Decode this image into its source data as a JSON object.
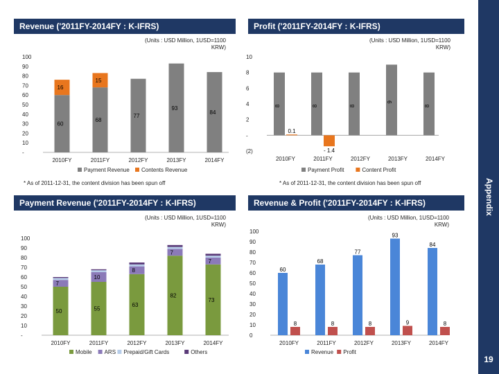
{
  "colors": {
    "navy": "#1f3864",
    "gray": "#808080",
    "orange": "#e8761e",
    "green": "#7a9a3e",
    "lavender": "#8b7ab8",
    "lightblue": "#b7cde9",
    "purple": "#5a3a78",
    "blue": "#4a86d8",
    "red": "#c0504d"
  },
  "sidebar": {
    "label": "Appendix",
    "page_number": "19"
  },
  "panels": {
    "rev": {
      "title": "Revenue ('2011FY-2014FY : K-IFRS)",
      "units": "(Units : USD Million, 1USD=1100 KRW)",
      "note": "* As of 2011-12-31, the content division has been spun off"
    },
    "profit": {
      "title": "Profit ('2011FY-2014FY : K-IFRS)",
      "units": "(Units : USD Million, 1USD=1100 KRW)",
      "note": "* As of 2011-12-31, the content division has been spun off"
    },
    "payrev": {
      "title": "Payment Revenue ('2011FY-2014FY : K-IFRS)",
      "units": "(Units : USD Million, 1USD=1100 KRW)"
    },
    "revprofit": {
      "title": "Revenue & Profit ('2011FY-2014FY : K-IFRS)",
      "units": "(Units : USD Million, 1USD=1100 KRW)"
    }
  },
  "chart_data": [
    {
      "id": "rev",
      "type": "bar",
      "stacked": true,
      "title": "Revenue ('2011FY-2014FY : K-IFRS)",
      "categories": [
        "2010FY",
        "2011FY",
        "2012FY",
        "2013FY",
        "2014FY"
      ],
      "y_tick_labels": [
        "-",
        "10",
        "20",
        "30",
        "40",
        "50",
        "60",
        "70",
        "80",
        "90",
        "100"
      ],
      "ylim": [
        0,
        100
      ],
      "series": [
        {
          "name": "Payment Revenue",
          "color": "#808080",
          "values": [
            60,
            68,
            77,
            93,
            84
          ],
          "labels": [
            "60",
            "68",
            "77",
            "93",
            "84"
          ]
        },
        {
          "name": "Contents Revenue",
          "color": "#e8761e",
          "values": [
            16,
            15,
            0,
            0,
            0
          ],
          "labels": [
            "16",
            "15",
            "",
            "",
            ""
          ]
        }
      ]
    },
    {
      "id": "profit",
      "type": "bar",
      "stacked": false,
      "title": "Profit ('2011FY-2014FY : K-IFRS)",
      "categories": [
        "2010FY",
        "2011FY",
        "2012FY",
        "2013FY",
        "2014FY"
      ],
      "y_tick_labels": [
        "(2)",
        "-",
        "2",
        "4",
        "6",
        "8",
        "10"
      ],
      "ylim": [
        -2,
        10
      ],
      "series": [
        {
          "name": "Payment Profit",
          "color": "#808080",
          "values": [
            8,
            8,
            8,
            9,
            8
          ],
          "labels": [
            "8",
            "8",
            "8",
            "9",
            "8"
          ]
        },
        {
          "name": "Content Profit",
          "color": "#e8761e",
          "values": [
            0.1,
            -1.4,
            0,
            0,
            0
          ],
          "labels": [
            "0.1",
            "- 1.4",
            "",
            "",
            ""
          ]
        }
      ]
    },
    {
      "id": "payrev",
      "type": "bar",
      "stacked": true,
      "title": "Payment Revenue ('2011FY-2014FY : K-IFRS)",
      "categories": [
        "2010FY",
        "2011FY",
        "2012FY",
        "2013FY",
        "2014FY"
      ],
      "y_tick_labels": [
        "-",
        "10",
        "20",
        "30",
        "40",
        "50",
        "60",
        "70",
        "80",
        "90",
        "100"
      ],
      "ylim": [
        0,
        100
      ],
      "series": [
        {
          "name": "Mobile",
          "color": "#7a9a3e",
          "values": [
            50,
            55,
            63,
            82,
            73
          ],
          "labels": [
            "50",
            "55",
            "63",
            "82",
            "73"
          ]
        },
        {
          "name": "ARS",
          "color": "#8b7ab8",
          "values": [
            7,
            10,
            8,
            7,
            7
          ],
          "labels": [
            "7",
            "10",
            "8",
            "7",
            "7"
          ]
        },
        {
          "name": "Prepaid/Gift Cards",
          "color": "#b7cde9",
          "values": [
            2,
            2,
            2,
            2,
            2
          ],
          "labels": [
            "",
            "",
            "",
            "",
            ""
          ]
        },
        {
          "name": "Others",
          "color": "#5a3a78",
          "values": [
            1,
            1,
            2,
            2,
            2
          ],
          "labels": [
            "",
            "",
            "",
            "",
            ""
          ]
        }
      ]
    },
    {
      "id": "revprofit",
      "type": "bar",
      "stacked": false,
      "title": "Revenue & Profit ('2011FY-2014FY : K-IFRS)",
      "categories": [
        "2010FY",
        "2011FY",
        "2012FY",
        "2013FY",
        "2014FY"
      ],
      "y_tick_labels": [
        "0",
        "10",
        "20",
        "30",
        "40",
        "50",
        "60",
        "70",
        "80",
        "90",
        "100"
      ],
      "ylim": [
        0,
        100
      ],
      "series": [
        {
          "name": "Revenue",
          "color": "#4a86d8",
          "values": [
            60,
            68,
            77,
            93,
            84
          ],
          "labels": [
            "60",
            "68",
            "77",
            "93",
            "84"
          ]
        },
        {
          "name": "Profit",
          "color": "#c0504d",
          "values": [
            8,
            8,
            8,
            9,
            8
          ],
          "labels": [
            "8",
            "8",
            "8",
            "9",
            "8"
          ]
        }
      ]
    }
  ]
}
